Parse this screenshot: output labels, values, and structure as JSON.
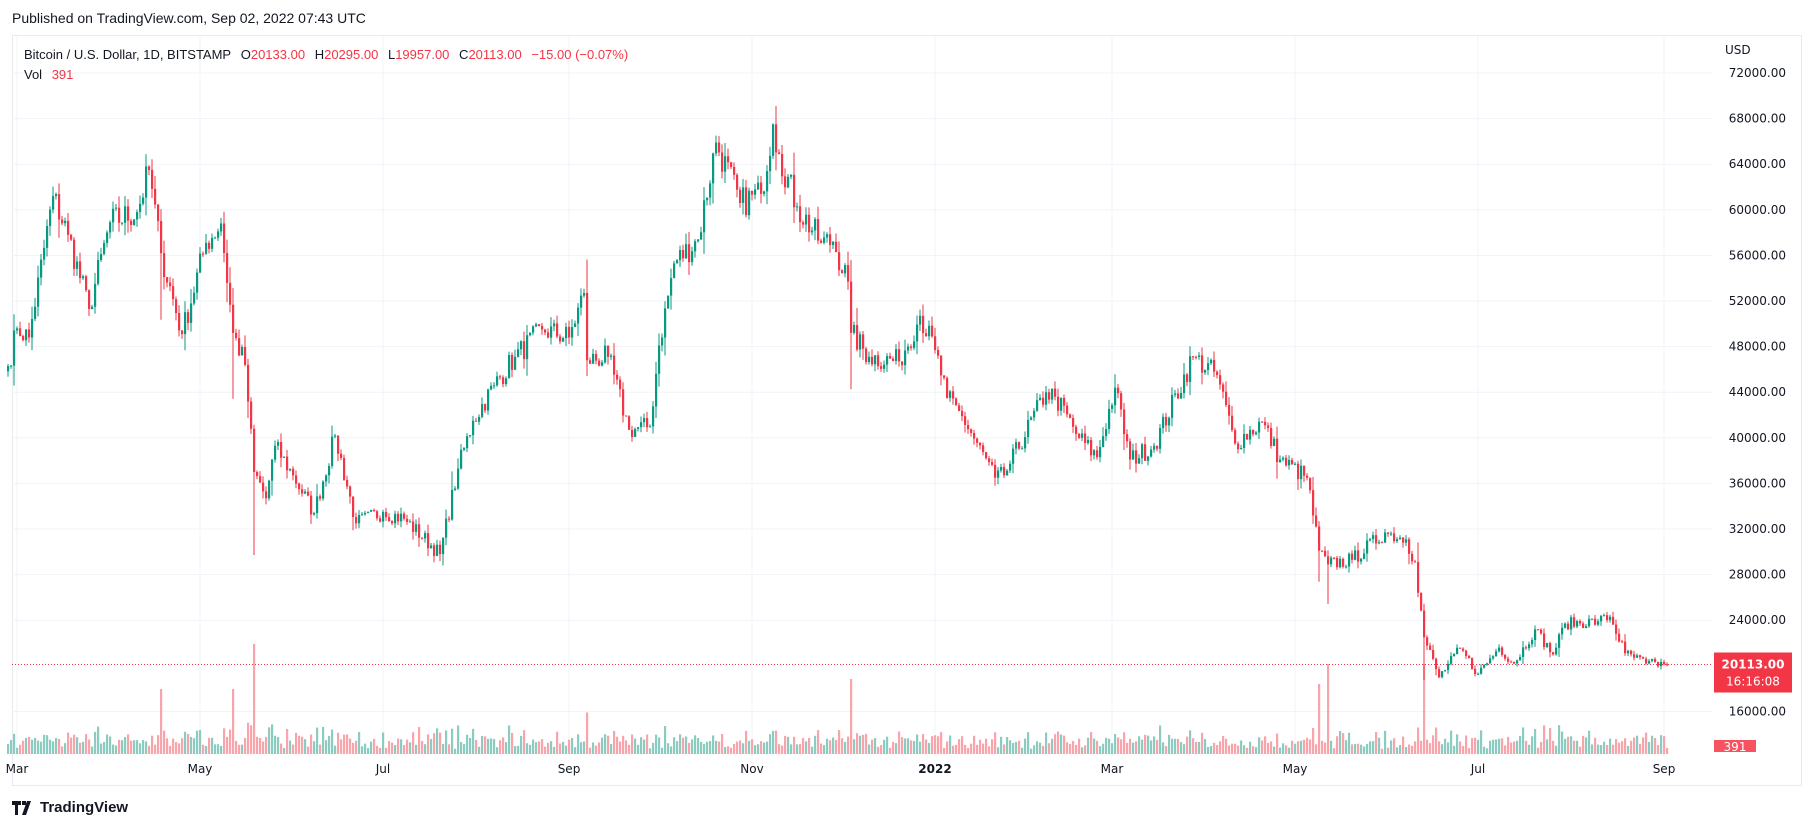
{
  "header": {
    "published": "Published on TradingView.com, Sep 02, 2022 07:43 UTC"
  },
  "legend": {
    "symbol": "Bitcoin / U.S. Dollar, 1D, BITSTAMP",
    "o_label": "O",
    "o": "20133.00",
    "h_label": "H",
    "h": "20295.00",
    "l_label": "L",
    "l": "19957.00",
    "c_label": "C",
    "c": "20113.00",
    "change": "−15.00 (−0.07%)",
    "vol_label": "Vol",
    "vol": "391"
  },
  "price_axis": {
    "currency": "USD",
    "last_price": "20113.00",
    "countdown": "16:16:08",
    "last_volume": "391"
  },
  "footer": {
    "logo_text": "TradingView",
    "logo_icon": "tradingview-logo-icon"
  },
  "colors": {
    "up": "#089981",
    "down": "#f23645",
    "up_vol": "#8cccc0",
    "down_vol": "#f8a4ab",
    "grid": "#f0f3fa"
  },
  "chart_data": {
    "type": "candlestick",
    "title": "Bitcoin / U.S. Dollar, 1D, BITSTAMP",
    "ylabel": "USD",
    "ylim": [
      14000,
      73500
    ],
    "yticks": [
      16000,
      24000,
      28000,
      32000,
      36000,
      40000,
      44000,
      48000,
      52000,
      56000,
      60000,
      64000,
      68000,
      72000
    ],
    "ytick_labels": [
      "16000.00",
      "24000.00",
      "28000.00",
      "32000.00",
      "36000.00",
      "40000.00",
      "44000.00",
      "48000.00",
      "52000.00",
      "56000.00",
      "60000.00",
      "64000.00",
      "68000.00",
      "72000.00"
    ],
    "xticks": [
      {
        "date": "2021-03-01",
        "label": "Mar"
      },
      {
        "date": "2021-05-01",
        "label": "May"
      },
      {
        "date": "2021-07-01",
        "label": "Jul"
      },
      {
        "date": "2021-09-01",
        "label": "Sep"
      },
      {
        "date": "2021-11-01",
        "label": "Nov"
      },
      {
        "date": "2022-01-01",
        "label": "2022",
        "bold": true
      },
      {
        "date": "2022-03-01",
        "label": "Mar"
      },
      {
        "date": "2022-05-01",
        "label": "May"
      },
      {
        "date": "2022-07-01",
        "label": "Jul"
      },
      {
        "date": "2022-09-01",
        "label": "Sep"
      }
    ],
    "grid": true,
    "approx_closes": [
      [
        "2021-02-26",
        46300
      ],
      [
        "2021-03-01",
        49600
      ],
      [
        "2021-03-05",
        48800
      ],
      [
        "2021-03-13",
        61200
      ],
      [
        "2021-03-18",
        57800
      ],
      [
        "2021-03-25",
        51300
      ],
      [
        "2021-04-01",
        58900
      ],
      [
        "2021-04-10",
        59800
      ],
      [
        "2021-04-14",
        63500
      ],
      [
        "2021-04-18",
        56200
      ],
      [
        "2021-04-25",
        49100
      ],
      [
        "2021-05-03",
        57100
      ],
      [
        "2021-05-08",
        58800
      ],
      [
        "2021-05-12",
        49200
      ],
      [
        "2021-05-16",
        46400
      ],
      [
        "2021-05-19",
        37000
      ],
      [
        "2021-05-23",
        34700
      ],
      [
        "2021-05-26",
        39300
      ],
      [
        "2021-06-01",
        36700
      ],
      [
        "2021-06-08",
        33400
      ],
      [
        "2021-06-15",
        40200
      ],
      [
        "2021-06-22",
        32500
      ],
      [
        "2021-07-01",
        33500
      ],
      [
        "2021-07-08",
        32900
      ],
      [
        "2021-07-20",
        29800
      ],
      [
        "2021-07-26",
        37300
      ],
      [
        "2021-07-31",
        41500
      ],
      [
        "2021-08-07",
        44600
      ],
      [
        "2021-08-14",
        47100
      ],
      [
        "2021-08-23",
        49500
      ],
      [
        "2021-09-01",
        48800
      ],
      [
        "2021-09-06",
        52700
      ],
      [
        "2021-09-07",
        46800
      ],
      [
        "2021-09-14",
        47100
      ],
      [
        "2021-09-21",
        40700
      ],
      [
        "2021-09-28",
        41000
      ],
      [
        "2021-10-01",
        48100
      ],
      [
        "2021-10-06",
        55300
      ],
      [
        "2021-10-14",
        57400
      ],
      [
        "2021-10-20",
        65900
      ],
      [
        "2021-10-28",
        60600
      ],
      [
        "2021-11-04",
        61400
      ],
      [
        "2021-11-08",
        67500
      ],
      [
        "2021-11-10",
        64900
      ],
      [
        "2021-11-16",
        60300
      ],
      [
        "2021-11-24",
        57100
      ],
      [
        "2021-11-28",
        57200
      ],
      [
        "2021-12-03",
        53700
      ],
      [
        "2021-12-04",
        49200
      ],
      [
        "2021-12-10",
        47100
      ],
      [
        "2021-12-20",
        46700
      ],
      [
        "2021-12-27",
        50700
      ],
      [
        "2022-01-01",
        47700
      ],
      [
        "2022-01-05",
        43500
      ],
      [
        "2022-01-10",
        41900
      ],
      [
        "2022-01-21",
        36500
      ],
      [
        "2022-01-24",
        36700
      ],
      [
        "2022-02-07",
        44000
      ],
      [
        "2022-02-10",
        43600
      ],
      [
        "2022-02-18",
        40000
      ],
      [
        "2022-02-24",
        38300
      ],
      [
        "2022-03-02",
        44400
      ],
      [
        "2022-03-07",
        38100
      ],
      [
        "2022-03-15",
        39300
      ],
      [
        "2022-03-28",
        47100
      ],
      [
        "2022-04-05",
        45500
      ],
      [
        "2022-04-11",
        39500
      ],
      [
        "2022-04-20",
        41400
      ],
      [
        "2022-04-26",
        38100
      ],
      [
        "2022-05-05",
        36500
      ],
      [
        "2022-05-09",
        30100
      ],
      [
        "2022-05-12",
        28900
      ],
      [
        "2022-05-20",
        29300
      ],
      [
        "2022-05-31",
        31700
      ],
      [
        "2022-06-07",
        31100
      ],
      [
        "2022-06-10",
        29100
      ],
      [
        "2022-06-13",
        22500
      ],
      [
        "2022-06-18",
        19000
      ],
      [
        "2022-06-25",
        21500
      ],
      [
        "2022-07-01",
        19300
      ],
      [
        "2022-07-08",
        21600
      ],
      [
        "2022-07-13",
        20200
      ],
      [
        "2022-07-20",
        23200
      ],
      [
        "2022-07-26",
        21000
      ],
      [
        "2022-07-30",
        23700
      ],
      [
        "2022-08-10",
        23900
      ],
      [
        "2022-08-14",
        24300
      ],
      [
        "2022-08-19",
        21100
      ],
      [
        "2022-08-26",
        20200
      ],
      [
        "2022-09-01",
        20133
      ]
    ],
    "last_bar": {
      "date": "2022-09-02",
      "open": 20133.0,
      "high": 20295.0,
      "low": 19957.0,
      "close": 20113.0,
      "volume": 391
    }
  }
}
